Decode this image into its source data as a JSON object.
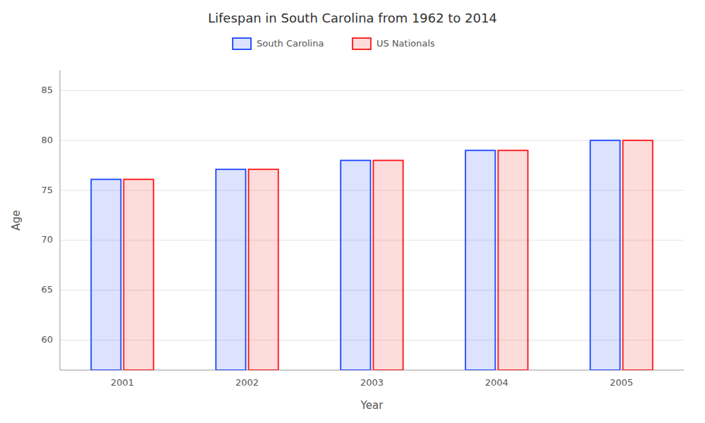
{
  "chart_data": {
    "type": "bar",
    "title": "Lifespan in South Carolina from 1962 to 2014",
    "xlabel": "Year",
    "ylabel": "Age",
    "categories": [
      "2001",
      "2002",
      "2003",
      "2004",
      "2005"
    ],
    "series": [
      {
        "name": "South Carolina",
        "color": "#1a44ff",
        "values": [
          76.1,
          77.1,
          78.0,
          79.0,
          80.0
        ]
      },
      {
        "name": "US Nationals",
        "color": "#ff1111",
        "values": [
          76.1,
          77.1,
          78.0,
          79.0,
          80.0
        ]
      }
    ],
    "ylim": [
      57,
      87
    ],
    "yticks": [
      60,
      65,
      70,
      75,
      80,
      85
    ],
    "grid": true,
    "legend": "top"
  }
}
